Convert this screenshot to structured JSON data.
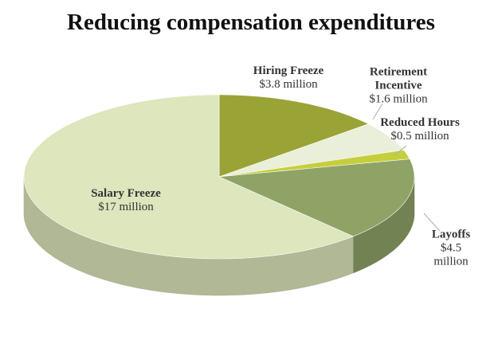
{
  "chart_data": {
    "type": "pie",
    "title": "Reducing compensation expenditures",
    "categories": [
      "Hiring Freeze",
      "Retirement Incentive",
      "Reduced Hours",
      "Layoffs",
      "Salary Freeze"
    ],
    "values": [
      3.8,
      1.6,
      0.5,
      4.5,
      17
    ],
    "value_labels": [
      "$3.8 million",
      "$1.6 million",
      "$0.5 million",
      "$4.5 million",
      "$17 million"
    ],
    "colors": [
      "#9aa336",
      "#e9efd8",
      "#c5cf3d",
      "#8fa367",
      "#dde6bc"
    ]
  }
}
